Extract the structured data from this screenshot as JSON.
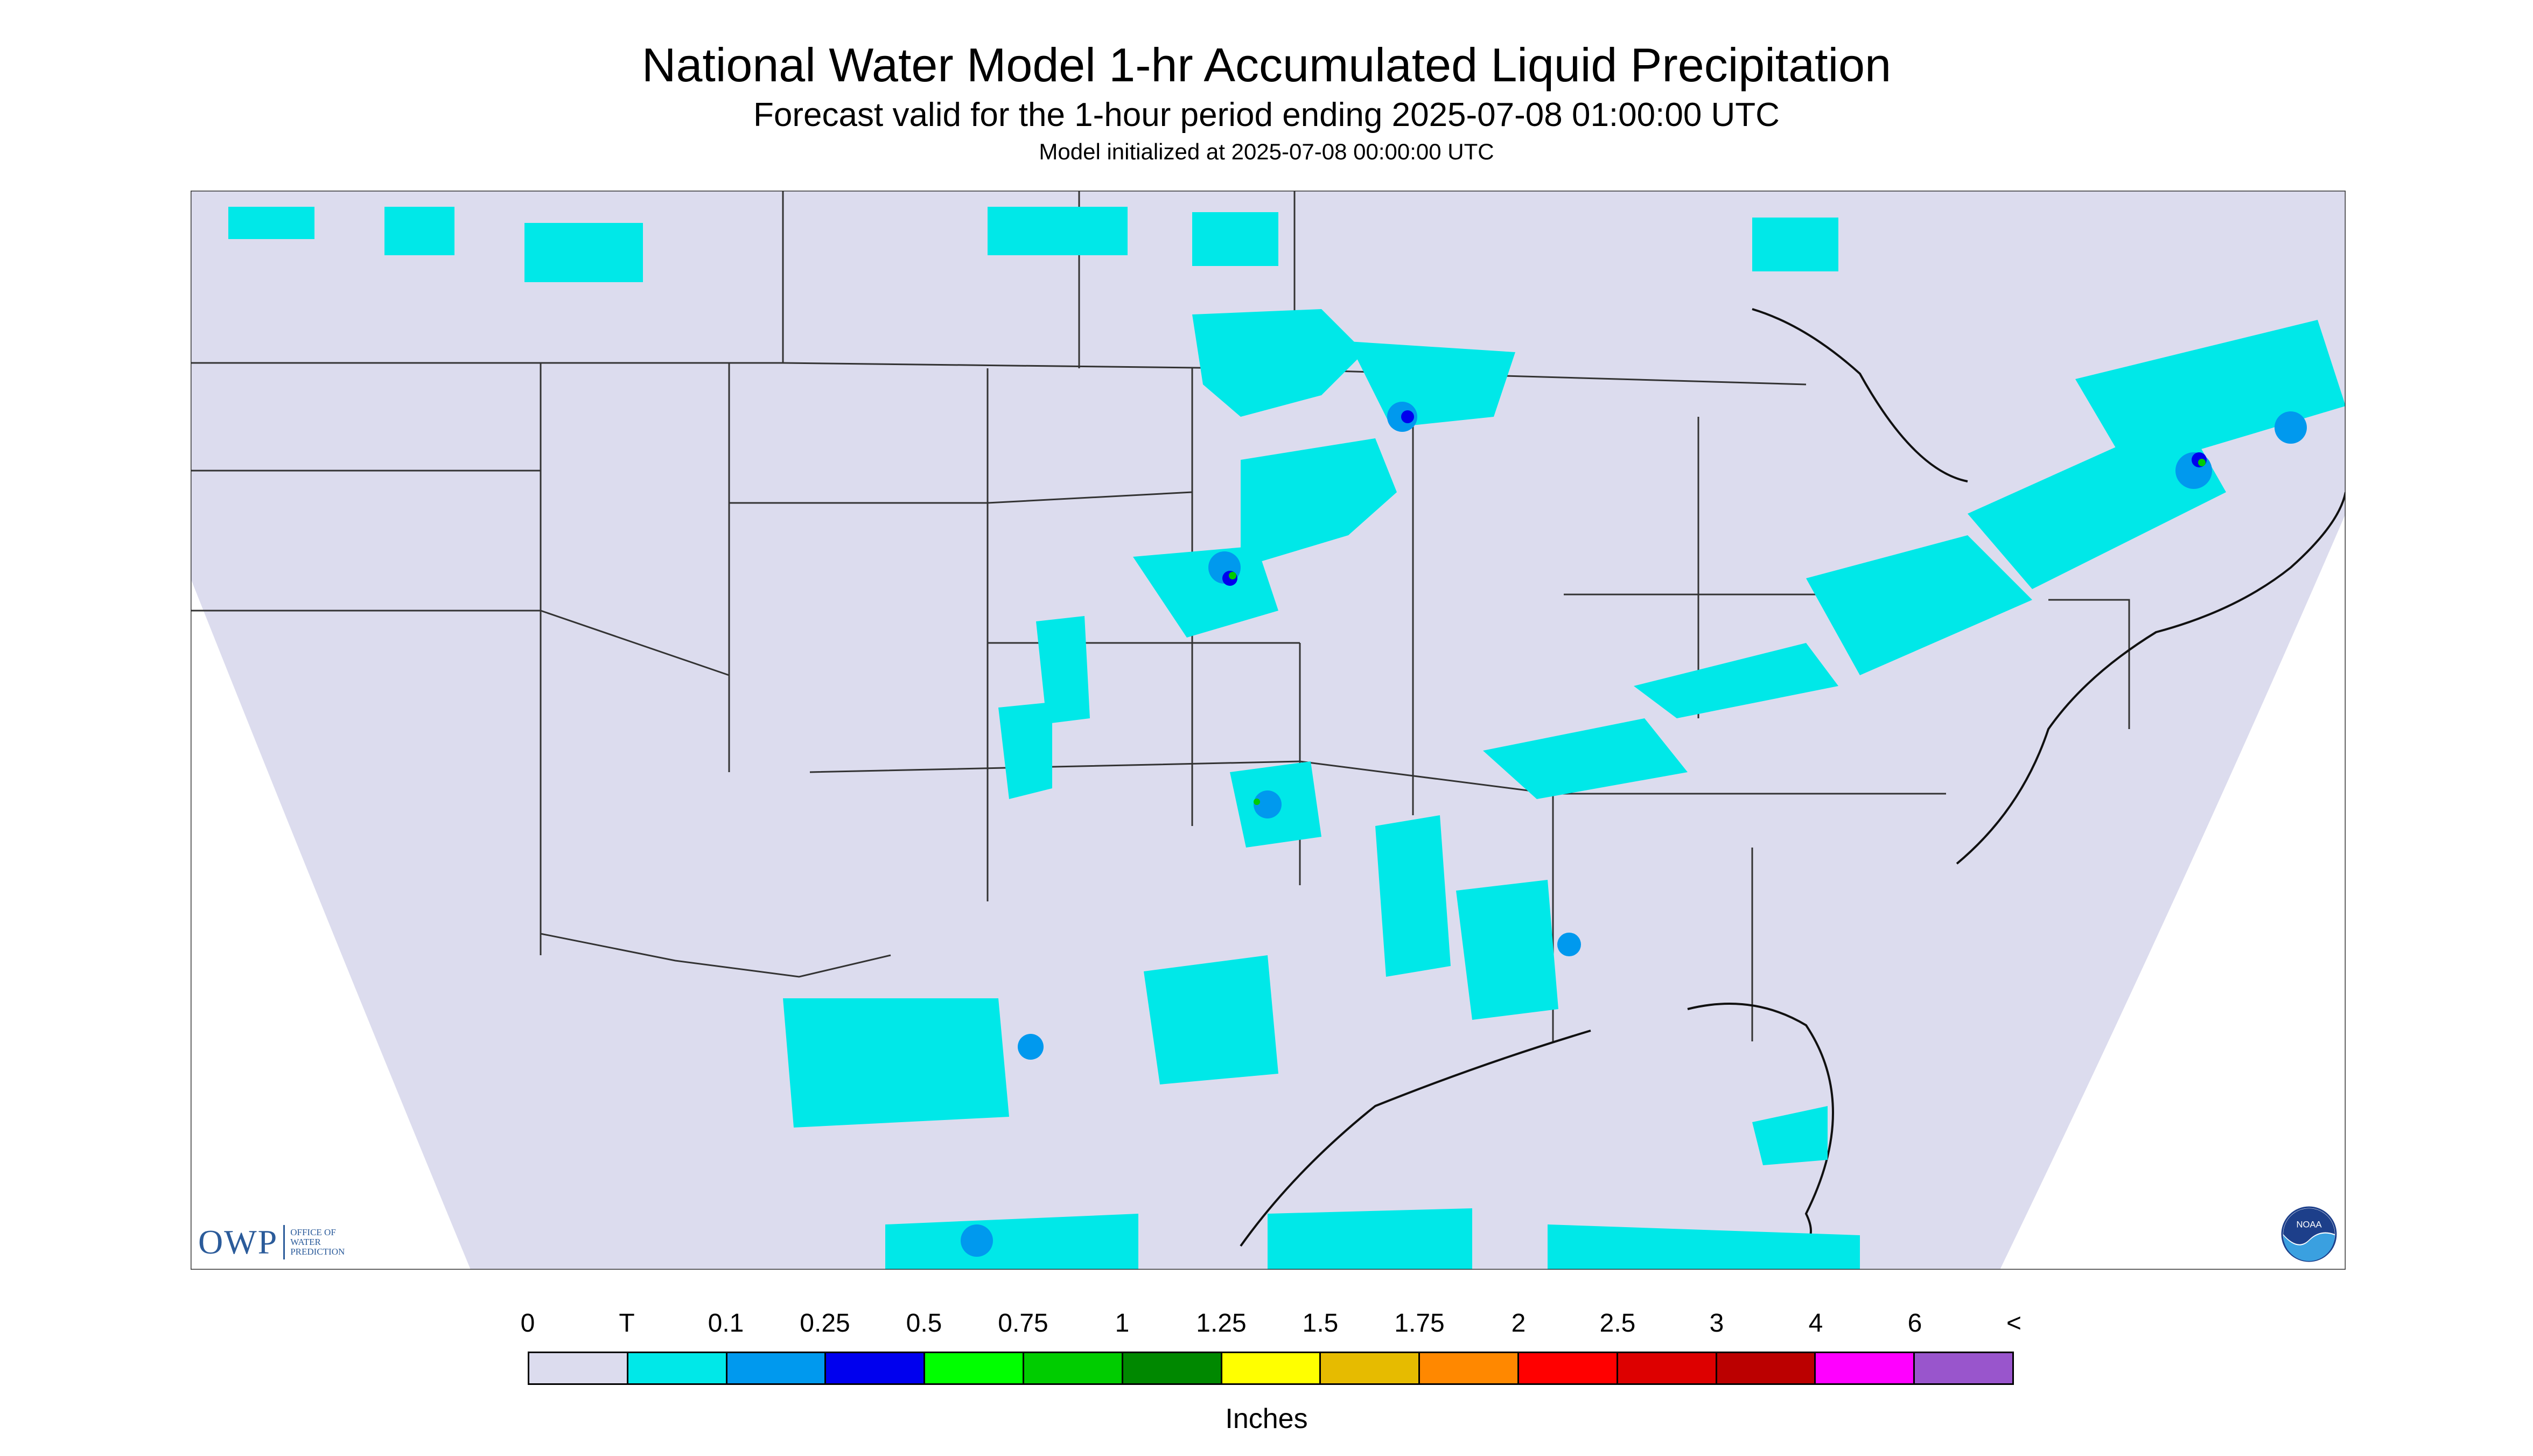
{
  "header": {
    "title": "National Water Model 1-hr Accumulated Liquid Precipitation",
    "subtitle": "Forecast valid for the 1-hour period ending 2025-07-08 01:00:00 UTC",
    "init_line": "Model initialized at 2025-07-08 00:00:00 UTC"
  },
  "map": {
    "background_color": "#dcdcee",
    "outside_color": "#ffffff",
    "border_color": "#333333",
    "precip_colors": {
      "trace": "#00e8e8",
      "light": "#0099ee",
      "moderate": "#0000ee",
      "heavy": "#00cc00"
    }
  },
  "logos": {
    "owp_text": "OWP",
    "owp_sub1": "Office of",
    "owp_sub2": "Water",
    "owp_sub3": "Prediction",
    "noaa_text": "NOAA"
  },
  "legend": {
    "units": "Inches",
    "ticks": [
      "0",
      "T",
      "0.1",
      "0.25",
      "0.5",
      "0.75",
      "1",
      "1.25",
      "1.5",
      "1.75",
      "2",
      "2.5",
      "3",
      "4",
      "6",
      "<"
    ],
    "colors": [
      "#dcdcee",
      "#00e8e8",
      "#0099ee",
      "#0000ee",
      "#00ff00",
      "#00cc00",
      "#008800",
      "#ffff00",
      "#e6bb00",
      "#ff8800",
      "#ff0000",
      "#dd0000",
      "#bb0000",
      "#ff00ff",
      "#9955cc"
    ]
  }
}
